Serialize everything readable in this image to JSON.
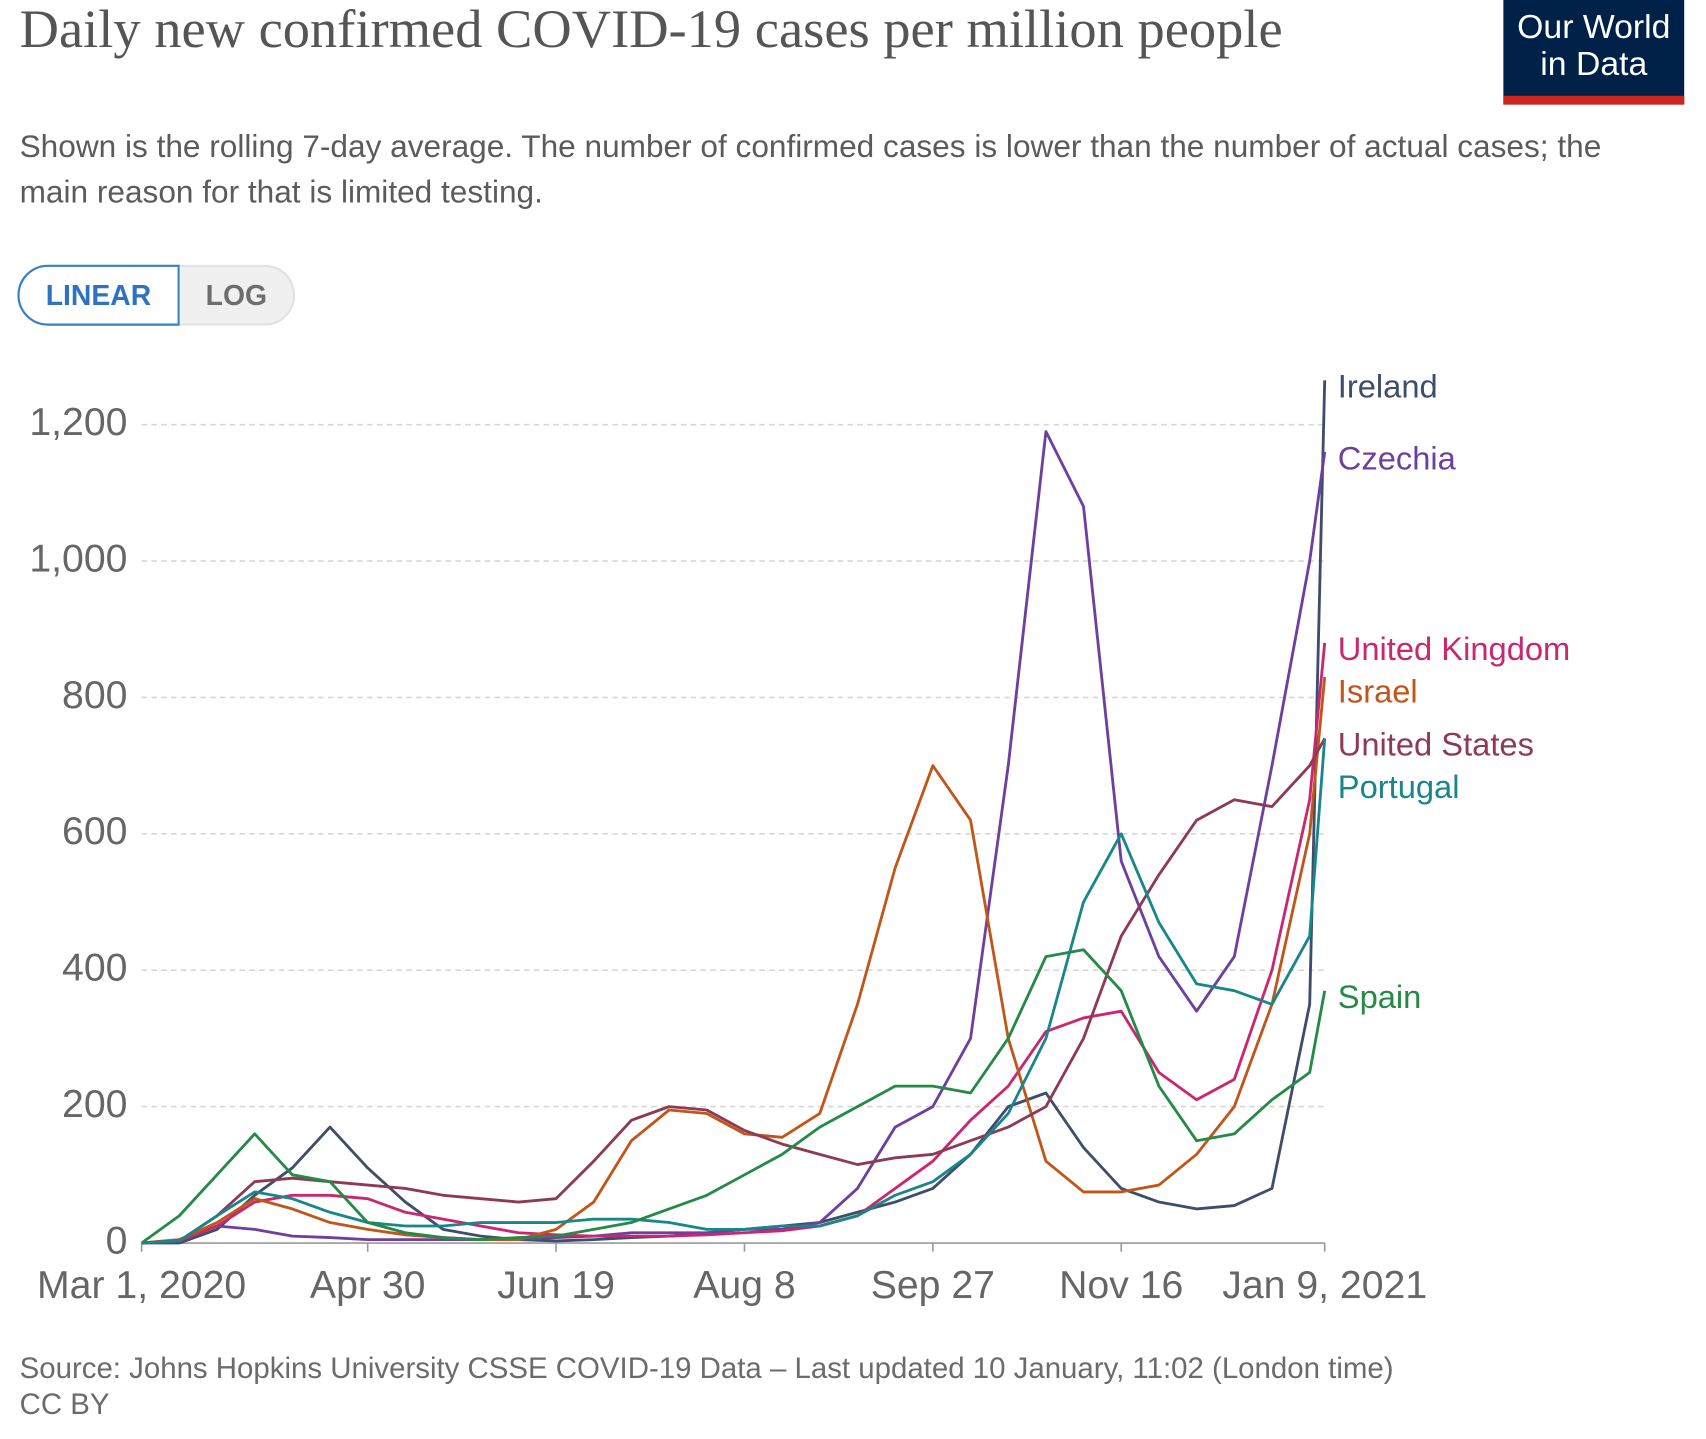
{
  "chart_data": {
    "type": "line",
    "title": "Daily new confirmed COVID-19 cases per million people",
    "subtitle": "Shown is the rolling 7-day average. The number of confirmed cases is lower than the number of actual cases; the main reason for that is limited testing.",
    "logo": [
      "Our World",
      "in Data"
    ],
    "scale_options": [
      "LINEAR",
      "LOG"
    ],
    "log_scale": false,
    "grid": true,
    "source": "Source: Johns Hopkins University CSSE COVID-19 Data – Last updated 10 January, 11:02 (London time)",
    "license": "CC BY",
    "x": [
      "2020-03-01",
      "2020-03-11",
      "2020-03-21",
      "2020-03-31",
      "2020-04-10",
      "2020-04-20",
      "2020-04-30",
      "2020-05-10",
      "2020-05-20",
      "2020-05-30",
      "2020-06-09",
      "2020-06-19",
      "2020-06-29",
      "2020-07-09",
      "2020-07-19",
      "2020-07-29",
      "2020-08-08",
      "2020-08-18",
      "2020-08-28",
      "2020-09-07",
      "2020-09-17",
      "2020-09-27",
      "2020-10-07",
      "2020-10-17",
      "2020-10-27",
      "2020-11-06",
      "2020-11-16",
      "2020-11-26",
      "2020-12-06",
      "2020-12-16",
      "2020-12-26",
      "2021-01-05",
      "2021-01-09"
    ],
    "xlim": [
      "2020-03-01",
      "2021-01-09"
    ],
    "xticks": [
      {
        "value": "2020-03-01",
        "label": "Mar 1, 2020"
      },
      {
        "value": "2020-04-30",
        "label": "Apr 30"
      },
      {
        "value": "2020-06-19",
        "label": "Jun 19"
      },
      {
        "value": "2020-08-08",
        "label": "Aug 8"
      },
      {
        "value": "2020-09-27",
        "label": "Sep 27"
      },
      {
        "value": "2020-11-16",
        "label": "Nov 16"
      },
      {
        "value": "2021-01-09",
        "label": "Jan 9, 2021"
      }
    ],
    "ylim": [
      0,
      1270
    ],
    "yticks": [
      0,
      200,
      400,
      600,
      800,
      {
        "value": 1000,
        "label": "1,000"
      },
      {
        "value": 1200,
        "label": "1,200"
      }
    ],
    "series": [
      {
        "name": "Ireland",
        "color": "#3d4d6b",
        "values": [
          0,
          0,
          20,
          70,
          110,
          170,
          110,
          60,
          20,
          10,
          5,
          3,
          5,
          8,
          10,
          15,
          20,
          25,
          30,
          45,
          60,
          80,
          130,
          200,
          220,
          140,
          80,
          60,
          50,
          55,
          80,
          350,
          1265
        ]
      },
      {
        "name": "Czechia",
        "color": "#6f3f9e",
        "values": [
          0,
          5,
          25,
          20,
          10,
          8,
          5,
          5,
          5,
          5,
          5,
          8,
          10,
          15,
          15,
          15,
          20,
          20,
          30,
          80,
          170,
          200,
          300,
          700,
          1190,
          1080,
          560,
          420,
          340,
          420,
          700,
          1000,
          1160
        ]
      },
      {
        "name": "United Kingdom",
        "color": "#c9276f",
        "values": [
          0,
          3,
          25,
          60,
          70,
          70,
          65,
          45,
          35,
          25,
          15,
          12,
          10,
          10,
          10,
          12,
          15,
          18,
          25,
          40,
          80,
          120,
          180,
          230,
          310,
          330,
          340,
          250,
          210,
          240,
          400,
          650,
          880
        ]
      },
      {
        "name": "Israel",
        "color": "#c0561a",
        "values": [
          0,
          5,
          30,
          65,
          50,
          30,
          20,
          12,
          8,
          5,
          5,
          20,
          60,
          150,
          195,
          190,
          160,
          155,
          190,
          350,
          550,
          700,
          620,
          300,
          120,
          75,
          75,
          85,
          130,
          200,
          350,
          600,
          830
        ]
      },
      {
        "name": "United States",
        "color": "#8e3a55",
        "values": [
          0,
          3,
          40,
          90,
          95,
          90,
          85,
          80,
          70,
          65,
          60,
          65,
          120,
          180,
          200,
          195,
          165,
          145,
          130,
          115,
          125,
          130,
          150,
          170,
          200,
          300,
          450,
          540,
          620,
          650,
          640,
          700,
          740
        ]
      },
      {
        "name": "Portugal",
        "color": "#18868a",
        "values": [
          0,
          3,
          40,
          75,
          65,
          45,
          30,
          25,
          25,
          30,
          30,
          30,
          35,
          35,
          30,
          20,
          20,
          25,
          25,
          40,
          70,
          90,
          130,
          190,
          300,
          500,
          600,
          470,
          380,
          370,
          350,
          450,
          740
        ]
      },
      {
        "name": "Spain",
        "color": "#248a45",
        "values": [
          0,
          40,
          100,
          160,
          100,
          90,
          30,
          15,
          8,
          5,
          8,
          10,
          20,
          30,
          50,
          70,
          100,
          130,
          170,
          200,
          230,
          230,
          220,
          300,
          420,
          430,
          370,
          230,
          150,
          160,
          210,
          250,
          370
        ]
      }
    ]
  }
}
